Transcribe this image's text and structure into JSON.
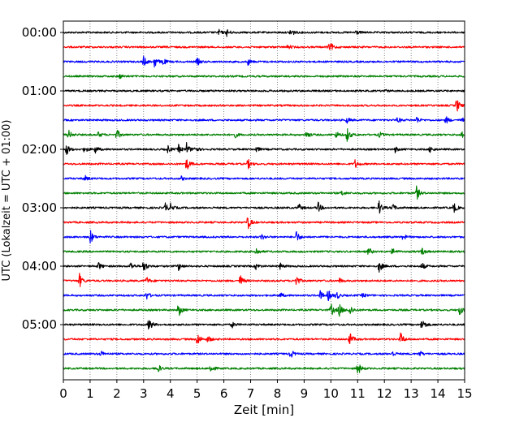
{
  "chart_data": {
    "type": "line",
    "title": "",
    "xlabel": "Zeit  [min]",
    "ylabel": "UTC (Lokalzeit = UTC + 01:00)",
    "xlim": [
      0,
      15
    ],
    "x_ticks": [
      "0",
      "1",
      "2",
      "3",
      "4",
      "5",
      "6",
      "7",
      "8",
      "9",
      "10",
      "11",
      "12",
      "13",
      "14",
      "15"
    ],
    "y_tick_labels": [
      "00:00",
      "01:00",
      "02:00",
      "03:00",
      "04:00",
      "05:00"
    ],
    "grid": "vertical dotted",
    "trace_colors": [
      "#000000",
      "#ff0000",
      "#0000ff",
      "#008000"
    ],
    "traces": [
      {
        "start": "00:00",
        "events": [
          [
            5.8,
            0.4
          ],
          [
            6.1,
            0.5
          ],
          [
            8.5,
            0.7
          ],
          [
            10.9,
            0.5
          ]
        ]
      },
      {
        "start": "00:15",
        "events": [
          [
            8.4,
            0.3
          ],
          [
            9.9,
            0.35
          ],
          [
            10.0,
            0.4
          ]
        ]
      },
      {
        "start": "00:30",
        "events": [
          [
            3.0,
            0.7
          ],
          [
            3.4,
            0.9
          ],
          [
            3.7,
            0.6
          ],
          [
            5.0,
            0.55
          ],
          [
            6.9,
            0.45
          ]
        ]
      },
      {
        "start": "00:45",
        "events": [
          [
            2.1,
            0.3
          ]
        ]
      },
      {
        "start": "01:00",
        "events": [
          [
            12.0,
            0.2
          ]
        ]
      },
      {
        "start": "01:15",
        "events": [
          [
            14.7,
            1.0
          ]
        ]
      },
      {
        "start": "01:30",
        "events": [
          [
            10.6,
            0.4
          ],
          [
            12.5,
            0.4
          ],
          [
            13.2,
            0.5
          ],
          [
            14.3,
            0.5
          ],
          [
            14.9,
            0.3
          ]
        ]
      },
      {
        "start": "01:45",
        "events": [
          [
            0.2,
            0.6
          ],
          [
            1.3,
            0.45
          ],
          [
            2.0,
            0.7
          ],
          [
            6.4,
            0.45
          ],
          [
            9.1,
            0.5
          ],
          [
            10.2,
            0.5
          ],
          [
            10.6,
            1.0
          ],
          [
            11.8,
            0.4
          ],
          [
            14.9,
            0.5
          ]
        ]
      },
      {
        "start": "02:00",
        "events": [
          [
            0.1,
            0.9
          ],
          [
            0.8,
            0.5
          ],
          [
            1.2,
            0.5
          ],
          [
            3.9,
            0.5
          ],
          [
            4.3,
            0.6
          ],
          [
            4.6,
            0.9
          ],
          [
            4.9,
            0.5
          ],
          [
            7.2,
            0.4
          ],
          [
            12.4,
            0.4
          ],
          [
            13.7,
            0.5
          ]
        ]
      },
      {
        "start": "02:15",
        "events": [
          [
            4.6,
            1.0
          ],
          [
            6.9,
            0.7
          ],
          [
            10.9,
            0.6
          ]
        ]
      },
      {
        "start": "02:30",
        "events": [
          [
            0.8,
            0.4
          ],
          [
            4.4,
            0.3
          ]
        ]
      },
      {
        "start": "02:45",
        "events": [
          [
            10.4,
            0.4
          ],
          [
            13.2,
            1.0
          ]
        ]
      },
      {
        "start": "03:00",
        "events": [
          [
            3.8,
            0.7
          ],
          [
            4.0,
            0.5
          ],
          [
            8.8,
            0.5
          ],
          [
            9.5,
            0.9
          ],
          [
            11.8,
            1.0
          ],
          [
            12.3,
            0.5
          ],
          [
            14.6,
            0.7
          ]
        ]
      },
      {
        "start": "03:15",
        "events": [
          [
            6.9,
            1.0
          ]
        ]
      },
      {
        "start": "03:30",
        "events": [
          [
            1.0,
            1.0
          ],
          [
            7.4,
            0.45
          ],
          [
            8.7,
            0.9
          ],
          [
            12.7,
            0.4
          ]
        ]
      },
      {
        "start": "03:45",
        "events": [
          [
            7.2,
            0.55
          ],
          [
            11.4,
            0.6
          ],
          [
            12.3,
            0.5
          ],
          [
            13.4,
            0.55
          ]
        ]
      },
      {
        "start": "04:00",
        "events": [
          [
            1.3,
            0.6
          ],
          [
            2.5,
            0.6
          ],
          [
            3.0,
            0.9
          ],
          [
            4.3,
            0.55
          ],
          [
            7.2,
            0.4
          ],
          [
            8.1,
            0.4
          ],
          [
            11.8,
            0.9
          ],
          [
            13.4,
            0.5
          ]
        ]
      },
      {
        "start": "04:15",
        "events": [
          [
            0.6,
            1.0
          ],
          [
            3.1,
            0.6
          ],
          [
            6.6,
            0.9
          ],
          [
            8.7,
            0.8
          ],
          [
            10.3,
            0.4
          ]
        ]
      },
      {
        "start": "04:30",
        "events": [
          [
            3.1,
            0.6
          ],
          [
            8.1,
            0.4
          ],
          [
            9.6,
            0.6
          ],
          [
            9.9,
            0.8
          ],
          [
            10.2,
            0.6
          ],
          [
            11.2,
            0.3
          ]
        ]
      },
      {
        "start": "04:45",
        "events": [
          [
            4.3,
            1.0
          ],
          [
            10.0,
            0.9
          ],
          [
            10.3,
            1.0
          ],
          [
            10.7,
            0.8
          ],
          [
            14.8,
            0.8
          ]
        ]
      },
      {
        "start": "05:00",
        "events": [
          [
            3.2,
            1.0
          ],
          [
            6.3,
            0.4
          ],
          [
            13.4,
            1.0
          ]
        ]
      },
      {
        "start": "05:15",
        "events": [
          [
            5.0,
            1.0
          ],
          [
            5.4,
            0.5
          ],
          [
            10.7,
            1.0
          ],
          [
            12.6,
            1.0
          ]
        ]
      },
      {
        "start": "05:30",
        "events": [
          [
            1.4,
            0.4
          ],
          [
            8.5,
            0.6
          ],
          [
            12.3,
            0.4
          ],
          [
            13.3,
            0.5
          ]
        ]
      },
      {
        "start": "05:45",
        "events": [
          [
            3.5,
            0.8
          ],
          [
            5.5,
            0.7
          ],
          [
            11.0,
            1.0
          ]
        ]
      }
    ]
  }
}
